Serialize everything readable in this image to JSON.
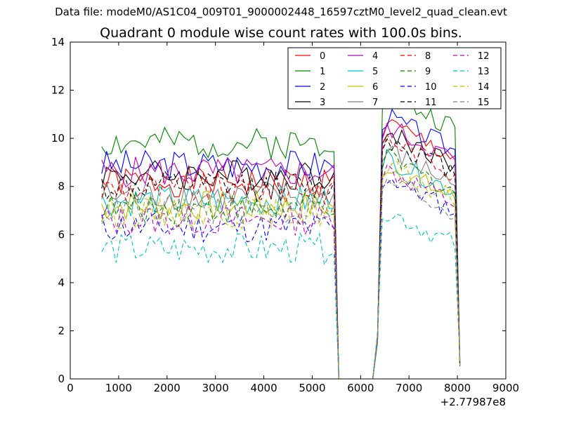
{
  "suptitle": "Data file: modeM0/AS1C04_009T01_9000002448_16597cztM0_level2_quad_clean.evt",
  "chart_data": {
    "type": "line",
    "title": "Quadrant 0 module wise count rates with 100.0s bins.",
    "xlabel": "",
    "ylabel": "",
    "x_offset_label": "+2.77987e8",
    "xlim": [
      0,
      9000
    ],
    "ylim": [
      0,
      14
    ],
    "xticks": [
      "0",
      "1000",
      "2000",
      "3000",
      "4000",
      "5000",
      "6000",
      "7000",
      "8000",
      "9000"
    ],
    "yticks": [
      "0",
      "2",
      "4",
      "6",
      "8",
      "10",
      "12",
      "14"
    ],
    "legend_position": "top-right",
    "x": [
      650,
      750,
      850,
      950,
      1050,
      1150,
      1250,
      1350,
      1450,
      1550,
      1650,
      1750,
      1850,
      1950,
      2050,
      2150,
      2250,
      2350,
      2450,
      2550,
      2650,
      2750,
      2850,
      2950,
      3050,
      3150,
      3250,
      3350,
      3450,
      3550,
      3650,
      3750,
      3850,
      3950,
      4050,
      4150,
      4250,
      4350,
      4450,
      4550,
      4650,
      4750,
      4850,
      4950,
      5050,
      5150,
      5250,
      5350,
      5450,
      5550,
      5650,
      5750,
      5850,
      5950,
      6050,
      6150,
      6250,
      6350,
      6450,
      6550,
      6650,
      6750,
      6850,
      6950,
      7050,
      7150,
      7250,
      7350,
      7450,
      7550,
      7650,
      7750,
      7850,
      7950,
      8050
    ],
    "series": [
      {
        "name": "0",
        "color": "#ff0000",
        "dash": "solid",
        "base": 8.2,
        "peak": 10.6,
        "seed": 1
      },
      {
        "name": "1",
        "color": "#008000",
        "dash": "solid",
        "base": 9.8,
        "peak": 11.8,
        "seed": 2
      },
      {
        "name": "2",
        "color": "#0000ff",
        "dash": "solid",
        "base": 8.9,
        "peak": 10.9,
        "seed": 3
      },
      {
        "name": "3",
        "color": "#000000",
        "dash": "solid",
        "base": 8.5,
        "peak": 10.3,
        "seed": 4
      },
      {
        "name": "4",
        "color": "#bf00bf",
        "dash": "solid",
        "base": 8.6,
        "peak": 10.5,
        "seed": 5
      },
      {
        "name": "5",
        "color": "#00bfbf",
        "dash": "solid",
        "base": 7.4,
        "peak": 9.2,
        "seed": 6
      },
      {
        "name": "6",
        "color": "#bfbf00",
        "dash": "solid",
        "base": 7.2,
        "peak": 8.9,
        "seed": 7
      },
      {
        "name": "7",
        "color": "#808080",
        "dash": "solid",
        "base": 7.6,
        "peak": 9.5,
        "seed": 8
      },
      {
        "name": "8",
        "color": "#ff0000",
        "dash": "dashed",
        "base": 7.9,
        "peak": 10.0,
        "seed": 9
      },
      {
        "name": "9",
        "color": "#008000",
        "dash": "dashed",
        "base": 7.1,
        "peak": 9.2,
        "seed": 10
      },
      {
        "name": "10",
        "color": "#0000ff",
        "dash": "dashed",
        "base": 6.3,
        "peak": 8.4,
        "seed": 11
      },
      {
        "name": "11",
        "color": "#000000",
        "dash": "dashed",
        "base": 8.0,
        "peak": 10.0,
        "seed": 12
      },
      {
        "name": "12",
        "color": "#bf00bf",
        "dash": "dashed",
        "base": 6.6,
        "peak": 8.7,
        "seed": 13
      },
      {
        "name": "13",
        "color": "#00bfbf",
        "dash": "dashed",
        "base": 5.4,
        "peak": 7.0,
        "seed": 14
      },
      {
        "name": "14",
        "color": "#bfbf00",
        "dash": "dashed",
        "base": 6.9,
        "peak": 8.8,
        "seed": 15
      },
      {
        "name": "15",
        "color": "#808080",
        "dash": "dashed",
        "base": 7.0,
        "peak": 8.3,
        "seed": 16
      }
    ],
    "gap": {
      "drop_start": 5350,
      "zero_from": 5530,
      "zero_to": 6320,
      "rise_end": 6550,
      "end_x": 8050,
      "end_value_range": [
        0.5,
        0.9
      ]
    }
  }
}
